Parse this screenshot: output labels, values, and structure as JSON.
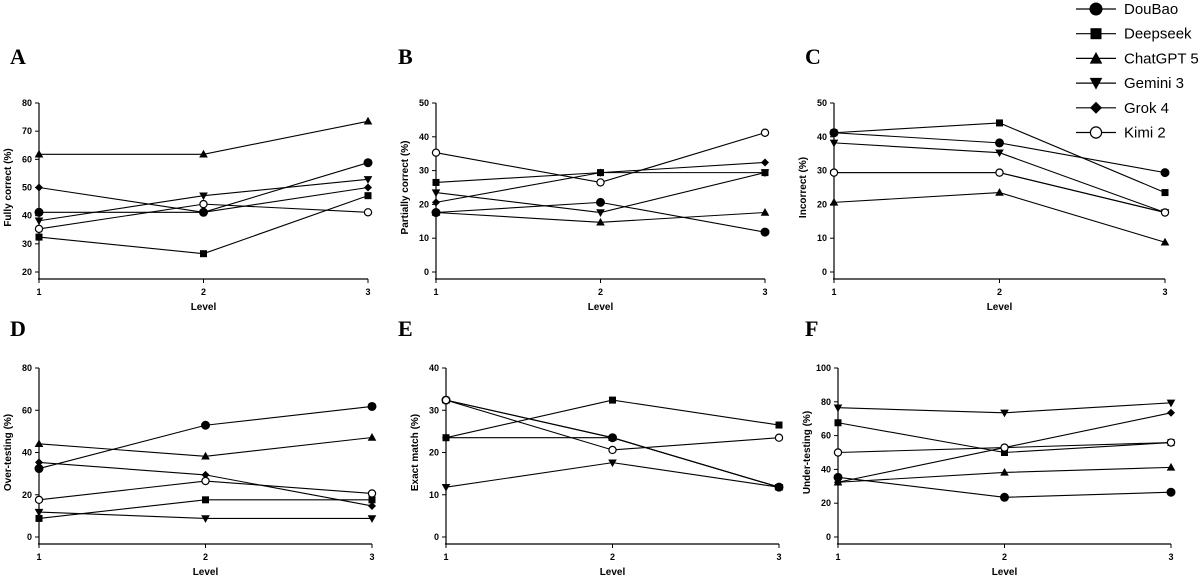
{
  "legend": [
    {
      "name": "DouBao",
      "marker": "circle-filled"
    },
    {
      "name": "Deepseek",
      "marker": "square-filled"
    },
    {
      "name": "ChatGPT 5",
      "marker": "triangle-up-filled"
    },
    {
      "name": "Gemini 3",
      "marker": "triangle-down-filled"
    },
    {
      "name": "Grok 4",
      "marker": "diamond-filled"
    },
    {
      "name": "Kimi 2",
      "marker": "circle-open"
    }
  ],
  "line_color": "#000000",
  "chart_data": [
    {
      "panel": "A",
      "type": "line",
      "xlabel": "Level",
      "ylabel": "Fully correct (%)",
      "x": [
        1,
        2,
        3
      ],
      "ylim": [
        20,
        80
      ],
      "yticks": [
        20,
        30,
        40,
        50,
        60,
        70,
        80
      ],
      "series": [
        {
          "name": "DouBao",
          "values": [
            41.2,
            41.2,
            58.8
          ]
        },
        {
          "name": "Deepseek",
          "values": [
            32.4,
            26.5,
            47.1
          ]
        },
        {
          "name": "ChatGPT 5",
          "values": [
            61.8,
            61.8,
            73.5
          ]
        },
        {
          "name": "Gemini 3",
          "values": [
            38.2,
            47.1,
            52.9
          ]
        },
        {
          "name": "Grok 4",
          "values": [
            50.0,
            41.2,
            50.0
          ]
        },
        {
          "name": "Kimi 2",
          "values": [
            35.3,
            44.1,
            41.2
          ]
        }
      ]
    },
    {
      "panel": "B",
      "type": "line",
      "xlabel": "Level",
      "ylabel": "Partially correct (%)",
      "x": [
        1,
        2,
        3
      ],
      "ylim": [
        0,
        50
      ],
      "yticks": [
        0,
        10,
        20,
        30,
        40,
        50
      ],
      "series": [
        {
          "name": "DouBao",
          "values": [
            17.6,
            20.6,
            11.8
          ]
        },
        {
          "name": "Deepseek",
          "values": [
            26.5,
            29.4,
            29.4
          ]
        },
        {
          "name": "ChatGPT 5",
          "values": [
            17.6,
            14.7,
            17.6
          ]
        },
        {
          "name": "Gemini 3",
          "values": [
            23.5,
            17.6,
            29.4
          ]
        },
        {
          "name": "Grok 4",
          "values": [
            20.6,
            29.4,
            32.4
          ]
        },
        {
          "name": "Kimi 2",
          "values": [
            35.3,
            26.5,
            41.2
          ]
        }
      ]
    },
    {
      "panel": "C",
      "type": "line",
      "xlabel": "Level",
      "ylabel": "Incorrect (%)",
      "x": [
        1,
        2,
        3
      ],
      "ylim": [
        0,
        50
      ],
      "yticks": [
        0,
        10,
        20,
        30,
        40,
        50
      ],
      "series": [
        {
          "name": "DouBao",
          "values": [
            41.2,
            38.2,
            29.4
          ]
        },
        {
          "name": "Deepseek",
          "values": [
            41.2,
            44.1,
            23.5
          ]
        },
        {
          "name": "ChatGPT 5",
          "values": [
            20.6,
            23.5,
            8.8
          ]
        },
        {
          "name": "Gemini 3",
          "values": [
            38.2,
            35.3,
            17.6
          ]
        },
        {
          "name": "Grok 4",
          "values": [
            29.4,
            29.4,
            17.6
          ]
        },
        {
          "name": "Kimi 2",
          "values": [
            29.4,
            29.4,
            17.6
          ]
        }
      ]
    },
    {
      "panel": "D",
      "type": "line",
      "xlabel": "Level",
      "ylabel": "Over-testing (%)",
      "x": [
        1,
        2,
        3
      ],
      "ylim": [
        0,
        80
      ],
      "yticks": [
        0,
        20,
        40,
        60,
        80
      ],
      "series": [
        {
          "name": "DouBao",
          "values": [
            32.4,
            52.9,
            61.8
          ]
        },
        {
          "name": "Deepseek",
          "values": [
            8.8,
            17.6,
            17.6
          ]
        },
        {
          "name": "ChatGPT 5",
          "values": [
            44.1,
            38.2,
            47.1
          ]
        },
        {
          "name": "Gemini 3",
          "values": [
            11.8,
            8.8,
            8.8
          ]
        },
        {
          "name": "Grok 4",
          "values": [
            35.3,
            29.4,
            14.7
          ]
        },
        {
          "name": "Kimi 2",
          "values": [
            17.6,
            26.5,
            20.6
          ]
        }
      ]
    },
    {
      "panel": "E",
      "type": "line",
      "xlabel": "Level",
      "ylabel": "Exact match (%)",
      "x": [
        1,
        2,
        3
      ],
      "ylim": [
        0,
        40
      ],
      "yticks": [
        0,
        10,
        20,
        30,
        40
      ],
      "series": [
        {
          "name": "DouBao",
          "values": [
            32.4,
            23.5,
            11.8
          ]
        },
        {
          "name": "Deepseek",
          "values": [
            23.5,
            32.4,
            26.5
          ]
        },
        {
          "name": "ChatGPT 5",
          "values": [
            32.4,
            23.5,
            11.8
          ]
        },
        {
          "name": "Gemini 3",
          "values": [
            11.8,
            17.6,
            11.8
          ]
        },
        {
          "name": "Grok 4",
          "values": [
            23.5,
            23.5,
            11.8
          ]
        },
        {
          "name": "Kimi 2",
          "values": [
            32.4,
            20.6,
            23.5
          ]
        }
      ]
    },
    {
      "panel": "F",
      "type": "line",
      "xlabel": "Level",
      "ylabel": "Under-testing (%)",
      "x": [
        1,
        2,
        3
      ],
      "ylim": [
        0,
        100
      ],
      "yticks": [
        0,
        20,
        40,
        60,
        80,
        100
      ],
      "series": [
        {
          "name": "DouBao",
          "values": [
            35.3,
            23.5,
            26.5
          ]
        },
        {
          "name": "Deepseek",
          "values": [
            67.6,
            50.0,
            55.9
          ]
        },
        {
          "name": "ChatGPT 5",
          "values": [
            32.4,
            38.2,
            41.2
          ]
        },
        {
          "name": "Gemini 3",
          "values": [
            76.5,
            73.5,
            79.4
          ]
        },
        {
          "name": "Grok 4",
          "values": [
            32.4,
            52.9,
            73.5
          ]
        },
        {
          "name": "Kimi 2",
          "values": [
            50.0,
            52.9,
            55.9
          ]
        }
      ]
    }
  ]
}
